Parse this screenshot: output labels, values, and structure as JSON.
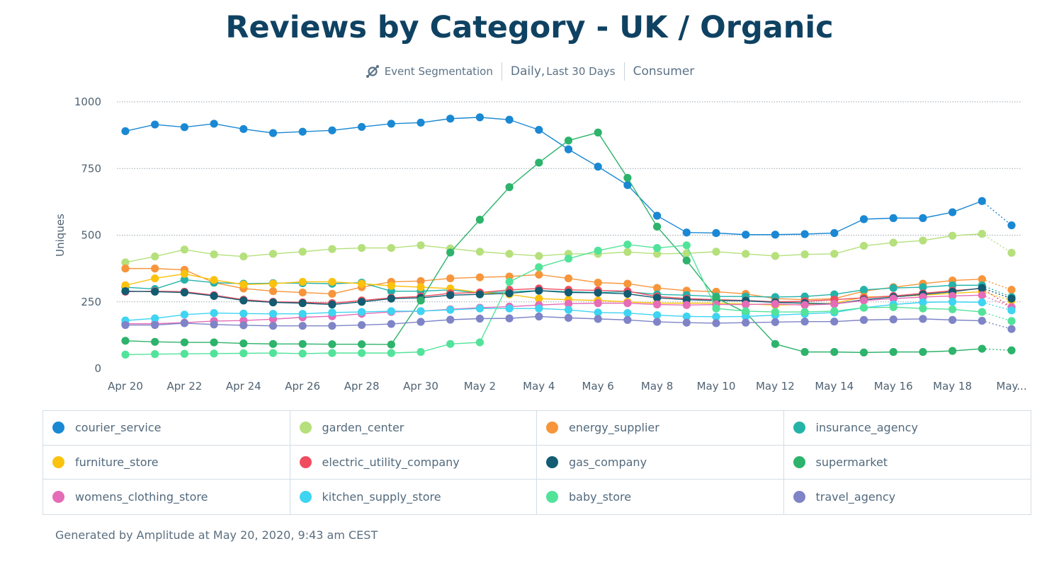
{
  "header": {
    "title": "Reviews by Category - UK / Organic",
    "event_label": "Event Segmentation",
    "range_prefix": "Daily,",
    "range_label": "Last 30 Days",
    "segment_label": "Consumer"
  },
  "footer": {
    "text": "Generated by Amplitude at May 20, 2020, 9:43 am CEST"
  },
  "chart_data": {
    "type": "line",
    "title": "Reviews by Category - UK / Organic",
    "xlabel": "",
    "ylabel": "Uniques",
    "ylim": [
      0,
      1000
    ],
    "yticks": [
      0,
      250,
      500,
      750,
      1000
    ],
    "grid": true,
    "legend": "bottom",
    "dotted_last_segment": true,
    "x": [
      "Apr 20",
      "Apr 21",
      "Apr 22",
      "Apr 23",
      "Apr 24",
      "Apr 25",
      "Apr 26",
      "Apr 27",
      "Apr 28",
      "Apr 29",
      "Apr 30",
      "May 1",
      "May 2",
      "May 3",
      "May 4",
      "May 5",
      "May 6",
      "May 7",
      "May 8",
      "May 9",
      "May 10",
      "May 11",
      "May 12",
      "May 13",
      "May 14",
      "May 15",
      "May 16",
      "May 17",
      "May 18",
      "May 19",
      "May..."
    ],
    "xtick_labels": [
      "Apr 20",
      "Apr 22",
      "Apr 24",
      "Apr 26",
      "Apr 28",
      "Apr 30",
      "May 2",
      "May 4",
      "May 6",
      "May 8",
      "May 10",
      "May 12",
      "May 14",
      "May 16",
      "May 18",
      "May..."
    ],
    "series": [
      {
        "name": "courier_service",
        "color": "#1a88d3",
        "values": [
          890,
          915,
          905,
          918,
          898,
          883,
          888,
          893,
          906,
          918,
          922,
          937,
          942,
          933,
          895,
          822,
          757,
          688,
          573,
          510,
          508,
          502,
          502,
          504,
          508,
          560,
          564,
          564,
          586,
          628,
          537
        ]
      },
      {
        "name": "garden_center",
        "color": "#b5e07c",
        "values": [
          398,
          420,
          446,
          428,
          420,
          430,
          438,
          448,
          452,
          452,
          462,
          450,
          438,
          430,
          422,
          430,
          430,
          437,
          430,
          432,
          438,
          430,
          422,
          428,
          430,
          460,
          472,
          480,
          498,
          505,
          434
        ]
      },
      {
        "name": "energy_supplier",
        "color": "#f7953b",
        "values": [
          375,
          375,
          370,
          322,
          300,
          290,
          285,
          280,
          305,
          325,
          328,
          338,
          342,
          345,
          352,
          338,
          322,
          318,
          302,
          292,
          288,
          280,
          262,
          258,
          262,
          290,
          305,
          318,
          330,
          335,
          295
        ]
      },
      {
        "name": "insurance_agency",
        "color": "#25b3a9",
        "values": [
          305,
          298,
          333,
          322,
          318,
          320,
          320,
          318,
          322,
          290,
          290,
          295,
          283,
          288,
          292,
          288,
          285,
          288,
          278,
          275,
          270,
          270,
          268,
          270,
          278,
          295,
          302,
          305,
          312,
          312,
          268
        ]
      },
      {
        "name": "furniture_store",
        "color": "#fbc20e",
        "values": [
          312,
          338,
          355,
          332,
          315,
          318,
          325,
          325,
          318,
          310,
          305,
          300,
          285,
          278,
          262,
          258,
          255,
          250,
          245,
          245,
          245,
          242,
          238,
          240,
          245,
          268,
          270,
          275,
          282,
          288,
          255
        ]
      },
      {
        "name": "electric_utility_company",
        "color": "#ef4d5f",
        "values": [
          288,
          290,
          288,
          275,
          258,
          250,
          248,
          245,
          255,
          265,
          270,
          282,
          285,
          295,
          300,
          295,
          293,
          290,
          270,
          262,
          258,
          255,
          250,
          252,
          258,
          265,
          272,
          282,
          292,
          300,
          230
        ]
      },
      {
        "name": "gas_company",
        "color": "#135c72",
        "values": [
          290,
          288,
          285,
          272,
          255,
          248,
          245,
          240,
          250,
          262,
          265,
          275,
          278,
          282,
          292,
          285,
          284,
          280,
          265,
          258,
          255,
          254,
          248,
          245,
          242,
          258,
          268,
          278,
          288,
          302,
          262
        ]
      },
      {
        "name": "supermarket",
        "color": "#2db36b",
        "values": [
          104,
          100,
          98,
          98,
          94,
          92,
          92,
          91,
          91,
          90,
          255,
          435,
          558,
          680,
          772,
          855,
          885,
          715,
          532,
          405,
          265,
          210,
          92,
          62,
          62,
          60,
          62,
          62,
          66,
          74,
          68
        ]
      },
      {
        "name": "womens_clothing_store",
        "color": "#e56cb7",
        "values": [
          168,
          168,
          172,
          178,
          180,
          185,
          192,
          196,
          205,
          212,
          215,
          222,
          228,
          232,
          238,
          243,
          245,
          245,
          240,
          238,
          240,
          240,
          242,
          238,
          242,
          255,
          262,
          268,
          272,
          275,
          230
        ]
      },
      {
        "name": "kitchen_supply_store",
        "color": "#3ed4f2",
        "values": [
          180,
          188,
          202,
          208,
          206,
          205,
          205,
          210,
          212,
          215,
          215,
          220,
          225,
          225,
          225,
          220,
          210,
          208,
          200,
          195,
          194,
          195,
          200,
          205,
          210,
          228,
          240,
          248,
          250,
          248,
          218
        ]
      },
      {
        "name": "baby_store",
        "color": "#52e39a",
        "values": [
          52,
          54,
          55,
          56,
          57,
          58,
          56,
          58,
          58,
          58,
          62,
          92,
          98,
          325,
          380,
          412,
          442,
          465,
          452,
          462,
          225,
          215,
          212,
          212,
          215,
          228,
          230,
          225,
          222,
          212,
          178
        ]
      },
      {
        "name": "travel_agency",
        "color": "#7e84c6",
        "values": [
          163,
          163,
          170,
          165,
          162,
          160,
          160,
          160,
          163,
          167,
          175,
          183,
          187,
          188,
          195,
          190,
          186,
          182,
          175,
          172,
          170,
          172,
          174,
          176,
          176,
          182,
          184,
          186,
          182,
          179,
          148
        ]
      }
    ]
  }
}
